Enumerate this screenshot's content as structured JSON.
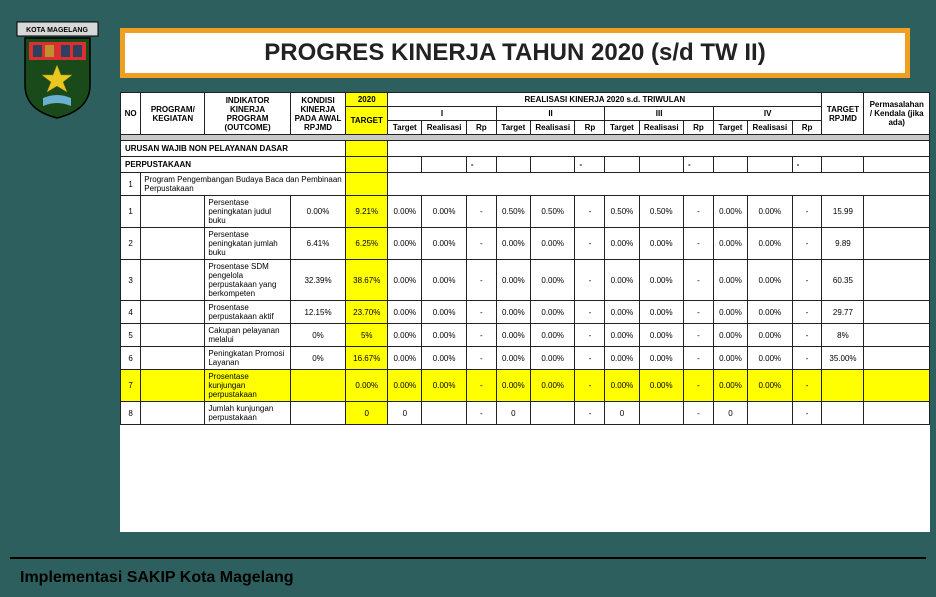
{
  "title": "PROGRES KINERJA TAHUN 2020 (s/d TW II)",
  "footer": "Implementasi SAKIP Kota Magelang",
  "logo": {
    "banner_text": "KOTA MAGELANG",
    "shield_top_color": "#d93030",
    "shield_mid_color": "#1a4a1a",
    "star_color": "#e8c820",
    "book_color": "#6ab0d0"
  },
  "colors": {
    "page_bg": "#2c5f5d",
    "title_border": "#f0a020",
    "highlight": "#ffff00",
    "gray": "#c8c8c8"
  },
  "headers": {
    "h_no": "NO",
    "h_program": "PROGRAM/ KEGIATAN",
    "h_indikator": "INDIKATOR KINERJA PROGRAM (OUTCOME)",
    "h_kondisi": "KONDISI KINERJA PADA AWAL RPJMD",
    "h_2020": "2020",
    "h_target": "TARGET",
    "h_realisasi_top": "REALISASI KINERJA 2020 s.d. TRIWULAN",
    "h_I": "I",
    "h_II": "II",
    "h_III": "III",
    "h_IV": "IV",
    "h_sub_target": "Target",
    "h_sub_realisasi": "Realisasi",
    "h_sub_rp": "Rp",
    "h_target_rpjmd": "TARGET RPJMD",
    "h_perma": "Permasalahan / Kendala (jika ada)"
  },
  "section1": "URUSAN WAJIB NON PELAYANAN DASAR",
  "section2": "PERPUSTAKAAN",
  "program_row": {
    "no": "1",
    "name": "Program Pengembangan Budaya Baca dan Pembinaan Perpustakaan"
  },
  "rows": [
    {
      "no": "1",
      "ind": "Persentase peningkatan judul buku",
      "kondisi": "0.00%",
      "target": "9.21%",
      "q": [
        "0.00%",
        "0.00%",
        "-",
        "0.50%",
        "0.50%",
        "-",
        "0.50%",
        "0.50%",
        "-",
        "0.00%",
        "0.00%",
        "-"
      ],
      "rpjmd": "15.99"
    },
    {
      "no": "2",
      "ind": "Persentase peningkatan jumlah buku",
      "kondisi": "6.41%",
      "target": "6.25%",
      "q": [
        "0.00%",
        "0.00%",
        "-",
        "0.00%",
        "0.00%",
        "-",
        "0.00%",
        "0.00%",
        "-",
        "0.00%",
        "0.00%",
        "-"
      ],
      "rpjmd": "9.89"
    },
    {
      "no": "3",
      "ind": "Prosentase SDM pengelola perpustakaan yang berkompeten",
      "kondisi": "32.39%",
      "target": "38.67%",
      "q": [
        "0.00%",
        "0.00%",
        "-",
        "0.00%",
        "0.00%",
        "-",
        "0.00%",
        "0.00%",
        "-",
        "0.00%",
        "0.00%",
        "-"
      ],
      "rpjmd": "60.35"
    },
    {
      "no": "4",
      "ind": "Prosentase perpustakaan aktif",
      "kondisi": "12.15%",
      "target": "23.70%",
      "q": [
        "0.00%",
        "0.00%",
        "-",
        "0.00%",
        "0.00%",
        "-",
        "0.00%",
        "0.00%",
        "-",
        "0.00%",
        "0.00%",
        "-"
      ],
      "rpjmd": "29.77"
    },
    {
      "no": "5",
      "ind": "Cakupan pelayanan melalui",
      "kondisi": "0%",
      "target": "5%",
      "q": [
        "0.00%",
        "0.00%",
        "-",
        "0.00%",
        "0.00%",
        "-",
        "0.00%",
        "0.00%",
        "-",
        "0.00%",
        "0.00%",
        "-"
      ],
      "rpjmd": "8%"
    },
    {
      "no": "6",
      "ind": "Peningkatan Promosi Layanan",
      "kondisi": "0%",
      "target": "16.67%",
      "q": [
        "0.00%",
        "0.00%",
        "-",
        "0.00%",
        "0.00%",
        "-",
        "0.00%",
        "0.00%",
        "-",
        "0.00%",
        "0.00%",
        "-"
      ],
      "rpjmd": "35.00%"
    },
    {
      "no": "7",
      "ind": "Prosentase kunjungan perpustakaan",
      "kondisi": "",
      "target": "0.00%",
      "q": [
        "0.00%",
        "0.00%",
        "-",
        "0.00%",
        "0.00%",
        "-",
        "0.00%",
        "0.00%",
        "-",
        "0.00%",
        "0.00%",
        "-"
      ],
      "rpjmd": ""
    },
    {
      "no": "8",
      "ind": "Jumlah kunjungan perpustakaan",
      "kondisi": "",
      "target": "0",
      "q": [
        "0",
        "",
        "-",
        "0",
        "",
        "-",
        "0",
        "",
        "-",
        "0",
        "",
        "-"
      ],
      "rpjmd": ""
    }
  ]
}
